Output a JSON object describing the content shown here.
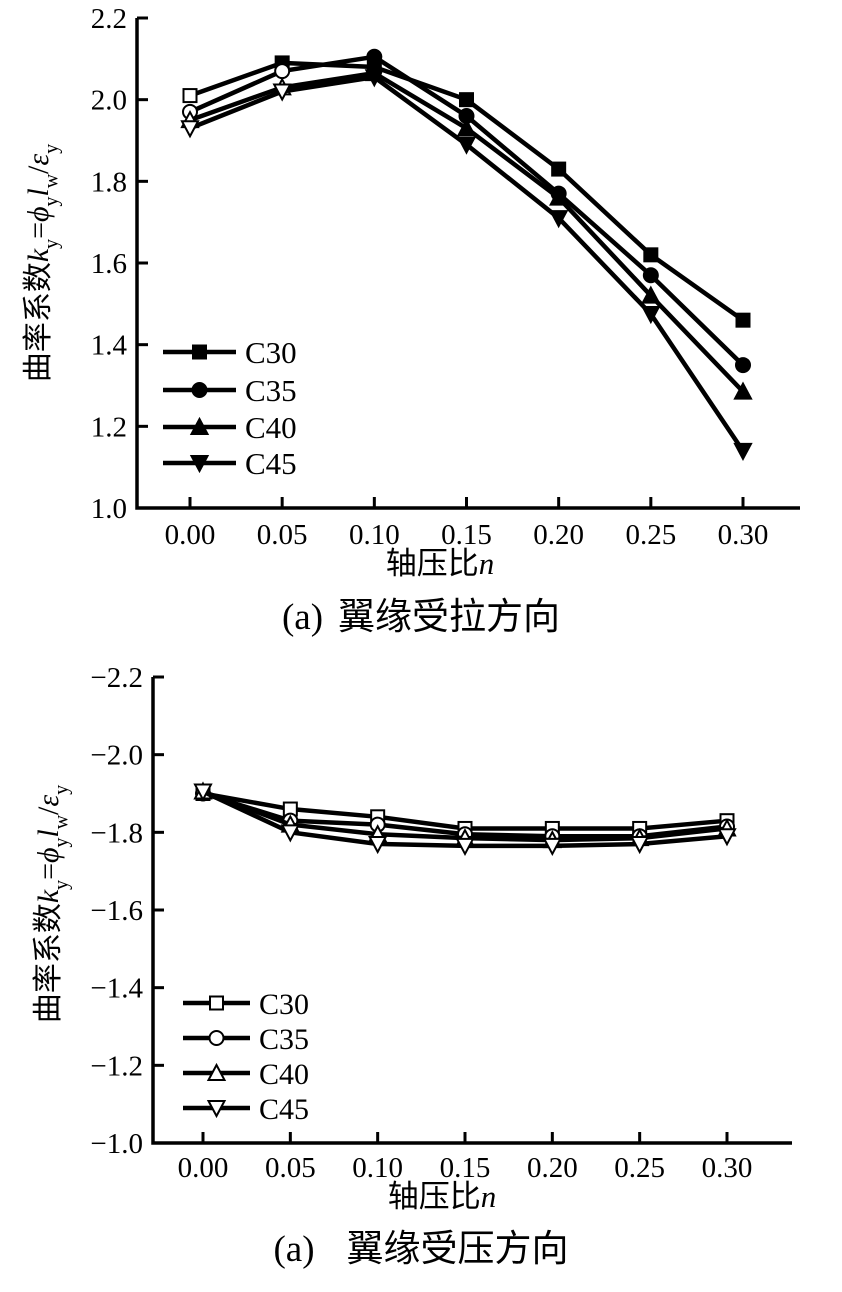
{
  "page": {
    "background": "#ffffff",
    "ink_color": "#000000"
  },
  "chart_data": [
    {
      "type": "line",
      "caption": {
        "prefix": "(a)",
        "title": "翼缘受拉方向"
      },
      "xlabel_parts": [
        {
          "text": "轴压比",
          "style": "normal"
        },
        {
          "text": "n",
          "style": "italic"
        }
      ],
      "ylabel_parts": [
        {
          "text": "曲率系数",
          "style": "normal"
        },
        {
          "text": "k",
          "style": "italic"
        },
        {
          "text": "y",
          "style": "sub"
        },
        {
          "text": "=",
          "style": "normal"
        },
        {
          "text": "ϕ",
          "style": "italic"
        },
        {
          "text": "y",
          "style": "sub"
        },
        {
          "text": "l",
          "style": "italic"
        },
        {
          "text": "w",
          "style": "sub"
        },
        {
          "text": "/",
          "style": "normal"
        },
        {
          "text": "ε",
          "style": "italic"
        },
        {
          "text": "y",
          "style": "sub"
        }
      ],
      "x": [
        0.0,
        0.05,
        0.1,
        0.15,
        0.2,
        0.25,
        0.3
      ],
      "xtick_labels": [
        "0.00",
        "0.05",
        "0.10",
        "0.15",
        "0.20",
        "0.25",
        "0.30"
      ],
      "yticks": [
        2.2,
        2.0,
        1.8,
        1.6,
        1.4,
        1.2,
        1.0
      ],
      "ytick_labels": [
        "2.2",
        "2.0",
        "1.8",
        "1.6",
        "1.4",
        "1.2",
        "1.0"
      ],
      "ylim_top": 2.2,
      "ylim_bottom": 1.0,
      "grid": false,
      "legend_position": "lower-left",
      "series": [
        {
          "name": "C30",
          "marker": "square",
          "fill": "filled",
          "open_indices": [
            0
          ],
          "values": [
            2.01,
            2.09,
            2.08,
            2.0,
            1.83,
            1.62,
            1.46
          ]
        },
        {
          "name": "C35",
          "marker": "circle",
          "fill": "filled",
          "open_indices": [
            0,
            1
          ],
          "values": [
            1.97,
            2.07,
            2.105,
            1.96,
            1.77,
            1.57,
            1.35
          ]
        },
        {
          "name": "C40",
          "marker": "triangle-up",
          "fill": "filled",
          "open_indices": [
            0,
            1
          ],
          "values": [
            1.95,
            2.03,
            2.065,
            1.93,
            1.76,
            1.52,
            1.285
          ]
        },
        {
          "name": "C45",
          "marker": "triangle-down",
          "fill": "filled",
          "open_indices": [
            0,
            1
          ],
          "values": [
            1.93,
            2.02,
            2.055,
            1.89,
            1.71,
            1.475,
            1.14
          ]
        }
      ]
    },
    {
      "type": "line",
      "caption": {
        "prefix": "(a)",
        "title": "翼缘受压方向"
      },
      "xlabel_parts": [
        {
          "text": "轴压比",
          "style": "normal"
        },
        {
          "text": "n",
          "style": "italic"
        }
      ],
      "ylabel_parts": [
        {
          "text": "曲率系数",
          "style": "normal"
        },
        {
          "text": "k",
          "style": "italic"
        },
        {
          "text": "y",
          "style": "sub"
        },
        {
          "text": "=",
          "style": "normal"
        },
        {
          "text": "ϕ",
          "style": "italic"
        },
        {
          "text": "y",
          "style": "sub"
        },
        {
          "text": "l",
          "style": "italic"
        },
        {
          "text": "w",
          "style": "sub"
        },
        {
          "text": "/",
          "style": "normal"
        },
        {
          "text": "ε",
          "style": "italic"
        },
        {
          "text": "y",
          "style": "sub"
        }
      ],
      "x": [
        0.0,
        0.05,
        0.1,
        0.15,
        0.2,
        0.25,
        0.3
      ],
      "xtick_labels": [
        "0.00",
        "0.05",
        "0.10",
        "0.15",
        "0.20",
        "0.25",
        "0.30"
      ],
      "yticks": [
        -2.2,
        -2.0,
        -1.8,
        -1.6,
        -1.4,
        -1.2,
        -1.0
      ],
      "ytick_labels": [
        "−2.2",
        "−2.0",
        "−1.8",
        "−1.6",
        "−1.4",
        "−1.2",
        "−1.0"
      ],
      "ylim_top": -2.2,
      "ylim_bottom": -1.0,
      "grid": false,
      "legend_position": "lower-left",
      "series": [
        {
          "name": "C30",
          "marker": "square",
          "fill": "open",
          "open_indices": [],
          "values": [
            -1.9,
            -1.86,
            -1.84,
            -1.81,
            -1.81,
            -1.81,
            -1.83
          ]
        },
        {
          "name": "C35",
          "marker": "circle",
          "fill": "open",
          "open_indices": [],
          "values": [
            -1.9,
            -1.83,
            -1.82,
            -1.795,
            -1.79,
            -1.79,
            -1.815
          ]
        },
        {
          "name": "C40",
          "marker": "triangle-up",
          "fill": "open",
          "open_indices": [],
          "values": [
            -1.905,
            -1.82,
            -1.795,
            -1.785,
            -1.78,
            -1.785,
            -1.81
          ]
        },
        {
          "name": "C45",
          "marker": "triangle-down",
          "fill": "open",
          "open_indices": [],
          "values": [
            -1.905,
            -1.8,
            -1.77,
            -1.765,
            -1.765,
            -1.77,
            -1.79
          ]
        }
      ]
    }
  ]
}
